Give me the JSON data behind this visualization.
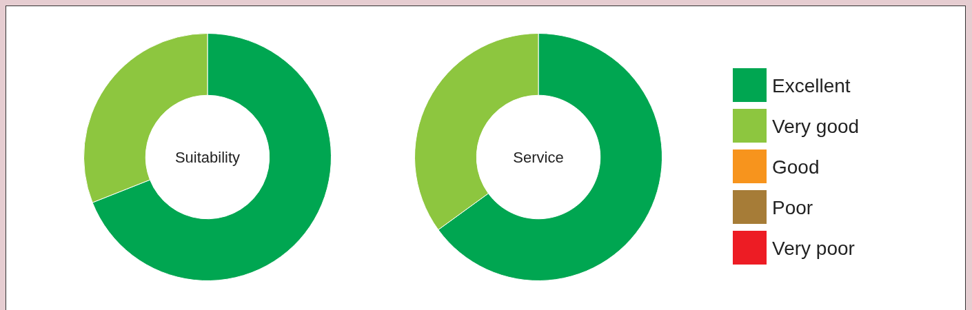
{
  "chart_data": [
    {
      "type": "donut",
      "title": "Suitability",
      "categories": [
        null,
        null,
        null,
        null,
        null
      ],
      "values": [
        69,
        31,
        0,
        0,
        0
      ],
      "colors": [
        "#00a651",
        "#8dc63f",
        "#f7941d",
        "#a67c37",
        "#ed1c24"
      ]
    },
    {
      "type": "donut",
      "title": "Service",
      "categories": [
        "Excellent",
        "Very good",
        "Good",
        "Poor",
        "Very poor"
      ],
      "values": [
        65,
        35,
        0,
        0,
        0
      ],
      "colors": [
        "#00a651",
        "#8dc63f",
        "#f7941d",
        "#a67c37",
        "#ed1c24"
      ],
      "legend": "right"
    }
  ]
}
